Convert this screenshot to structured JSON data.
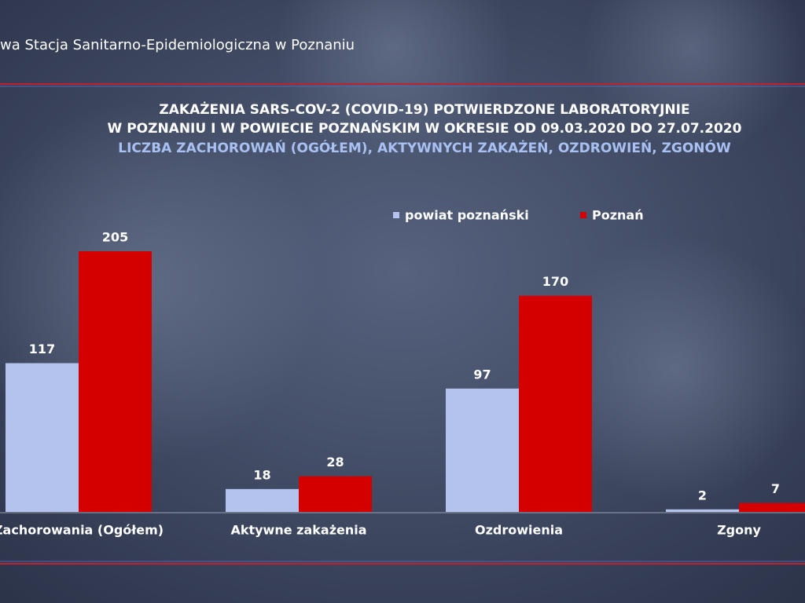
{
  "header": "wa Stacja Sanitarno-Epidemiologiczna w Poznaniu",
  "chart_data": {
    "type": "bar",
    "title": [
      "ZAKAŻENIA SARS-COV-2 (COVID-19) POTWIERDZONE LABORATORYJNIE",
      "W POZNANIU I W POWIECIE POZNAŃSKIM W OKRESIE OD 09.03.2020 DO 27.07.2020"
    ],
    "subtitle": "LICZBA ZACHOROWAŃ (OGÓŁEM), AKTYWNYCH ZAKAŻEŃ, OZDROWIEŃ, ZGONÓW",
    "categories": [
      "Zachorowania (Ogółem)",
      "Aktywne zakażenia",
      "Ozdrowienia",
      "Zgony"
    ],
    "series": [
      {
        "name": "powiat poznański",
        "color": "#b4c2ee",
        "values": [
          117,
          18,
          97,
          2
        ]
      },
      {
        "name": "Poznań",
        "color": "#d40000",
        "values": [
          205,
          28,
          170,
          7
        ]
      }
    ]
  }
}
